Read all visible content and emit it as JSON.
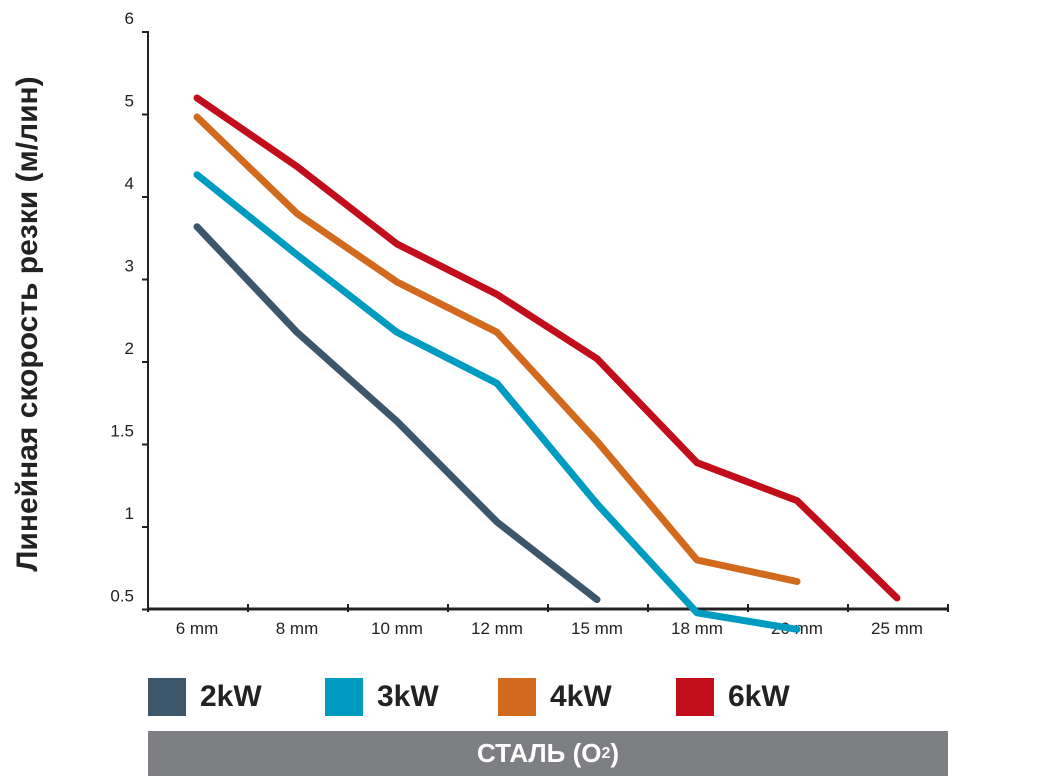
{
  "chart_data": {
    "type": "line",
    "ylabel": "Линейная скорость резки (м/лин)",
    "categories": [
      "6 mm",
      "8 mm",
      "10 mm",
      "12 mm",
      "15 mm",
      "18 mm",
      "20 mm",
      "25 mm"
    ],
    "y_ticks": [
      "0.5",
      "1",
      "1.5",
      "2",
      "3",
      "4",
      "5",
      "6"
    ],
    "series": [
      {
        "name": "2kW",
        "color": "#3c566c",
        "values": [
          3.64,
          2.36,
          1.64,
          1.03,
          0.56,
          null,
          null,
          null
        ]
      },
      {
        "name": "3kW",
        "color": "#009bc0",
        "values": [
          4.27,
          3.3,
          2.36,
          1.87,
          1.14,
          0.48,
          0.38,
          null
        ]
      },
      {
        "name": "4kW",
        "color": "#d26a1e",
        "values": [
          4.97,
          3.8,
          2.97,
          2.36,
          1.52,
          0.8,
          0.67,
          null
        ]
      },
      {
        "name": "6kW",
        "color": "#c20e1a",
        "values": [
          5.2,
          4.37,
          3.43,
          2.82,
          2.04,
          1.39,
          1.16,
          0.57
        ]
      }
    ],
    "legend_position": "bottom",
    "grid": false
  },
  "material": {
    "label": "СТАЛЬ (O",
    "subscript": "2",
    "suffix": ")"
  }
}
